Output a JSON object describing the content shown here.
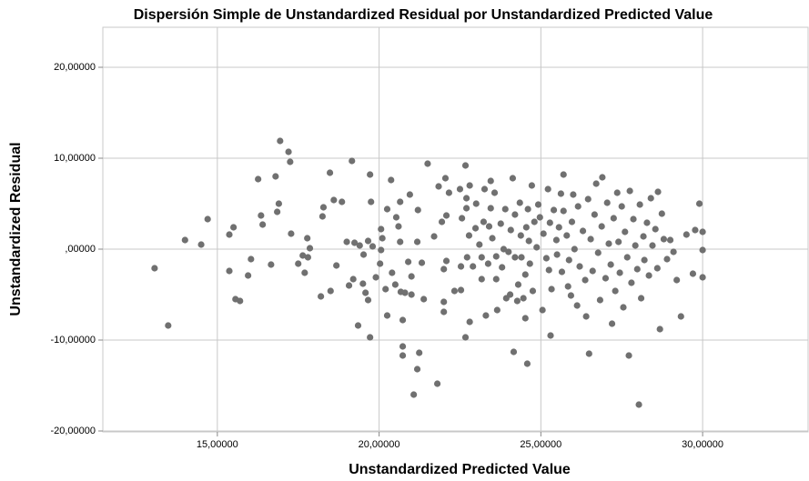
{
  "chart_data": {
    "type": "scatter",
    "title": "Dispersión Simple de Unstandardized Residual por Unstandardized Predicted Value",
    "xlabel": "Unstandardized Predicted Value",
    "ylabel": "Unstandardized Residual",
    "color": "#707070",
    "grid": true,
    "xlim": [
      11.46,
      33.26
    ],
    "ylim": [
      -20.1,
      24.4
    ],
    "xticks": [
      {
        "value": 15,
        "label": "15,00000"
      },
      {
        "value": 20,
        "label": "20,00000"
      },
      {
        "value": 25,
        "label": "25,00000"
      },
      {
        "value": 30,
        "label": "30,00000"
      }
    ],
    "yticks": [
      {
        "value": -20,
        "label": "-20,00000"
      },
      {
        "value": -10,
        "label": "-10,00000"
      },
      {
        "value": 0,
        "label": ",00000"
      },
      {
        "value": 10,
        "label": "10,00000"
      },
      {
        "value": 20,
        "label": "20,00000"
      }
    ],
    "x": [
      13.06,
      13.48,
      14.0,
      14.5,
      14.7,
      15.37,
      15.37,
      15.5,
      15.56,
      15.7,
      15.95,
      16.04,
      16.26,
      16.35,
      16.4,
      16.66,
      16.8,
      16.85,
      16.9,
      16.94,
      17.2,
      17.25,
      17.28,
      17.5,
      17.64,
      17.7,
      17.78,
      17.86,
      17.8,
      18.2,
      18.25,
      18.28,
      18.48,
      18.5,
      18.6,
      18.68,
      18.85,
      19.0,
      19.07,
      19.16,
      19.2,
      19.24,
      19.35,
      19.4,
      19.5,
      19.52,
      19.58,
      19.66,
      19.66,
      19.72,
      19.72,
      19.75,
      19.8,
      19.9,
      20.03,
      20.06,
      20.06,
      20.1,
      20.2,
      20.25,
      20.25,
      20.37,
      20.4,
      20.5,
      20.53,
      20.6,
      20.65,
      20.65,
      20.67,
      20.73,
      20.73,
      20.73,
      20.8,
      20.9,
      20.95,
      21.0,
      21.0,
      21.07,
      21.18,
      21.24,
      21.18,
      21.2,
      21.32,
      21.38,
      21.5,
      21.7,
      21.8,
      21.84,
      21.94,
      22.0,
      22.0,
      22.0,
      22.05,
      22.08,
      22.08,
      22.16,
      22.33,
      22.5,
      22.53,
      22.53,
      22.56,
      22.67,
      22.67,
      22.7,
      22.7,
      22.72,
      22.78,
      22.8,
      22.8,
      22.9,
      22.98,
      23.0,
      23.1,
      23.17,
      23.17,
      23.23,
      23.26,
      23.3,
      23.37,
      23.4,
      23.45,
      23.45,
      23.5,
      23.57,
      23.62,
      23.62,
      23.65,
      23.76,
      23.8,
      23.85,
      23.9,
      23.93,
      24.0,
      24.05,
      24.07,
      24.13,
      24.16,
      24.2,
      24.2,
      24.27,
      24.3,
      24.35,
      24.38,
      24.4,
      24.46,
      24.52,
      24.52,
      24.55,
      24.58,
      24.6,
      24.63,
      24.66,
      24.72,
      24.75,
      24.8,
      24.87,
      24.92,
      24.97,
      25.05,
      25.08,
      25.17,
      25.22,
      25.25,
      25.28,
      25.3,
      25.33,
      25.4,
      25.48,
      25.5,
      25.56,
      25.62,
      25.65,
      25.7,
      25.7,
      25.8,
      25.84,
      25.87,
      25.93,
      25.96,
      26.0,
      26.04,
      26.12,
      26.15,
      26.2,
      26.3,
      26.37,
      26.4,
      26.46,
      26.49,
      26.54,
      26.6,
      26.66,
      26.71,
      26.77,
      26.83,
      26.88,
      26.9,
      27.0,
      27.05,
      27.1,
      27.16,
      27.2,
      27.25,
      27.3,
      27.36,
      27.4,
      27.44,
      27.5,
      27.55,
      27.6,
      27.67,
      27.72,
      27.75,
      27.8,
      27.86,
      27.92,
      27.98,
      28.03,
      28.06,
      28.1,
      28.17,
      28.2,
      28.28,
      28.34,
      28.4,
      28.45,
      28.54,
      28.6,
      28.62,
      28.68,
      28.74,
      28.8,
      28.9,
      29.0,
      29.1,
      29.2,
      29.33,
      29.5,
      29.7,
      29.77,
      29.9,
      30.0,
      30.0,
      30.0
    ],
    "values": [
      -2.1,
      -8.4,
      1.0,
      0.5,
      3.3,
      -2.4,
      1.6,
      2.4,
      -5.5,
      -5.7,
      -2.9,
      -1.1,
      7.7,
      3.7,
      2.7,
      -1.7,
      8.0,
      4.1,
      5.0,
      11.9,
      10.7,
      9.6,
      1.7,
      -1.6,
      -0.7,
      -2.6,
      1.2,
      0.1,
      -0.9,
      -5.2,
      3.6,
      4.6,
      8.4,
      -4.6,
      5.4,
      -1.8,
      5.2,
      0.8,
      -4.0,
      9.7,
      -3.3,
      0.7,
      -8.4,
      0.4,
      -3.8,
      -0.6,
      -4.8,
      0.9,
      -5.6,
      -9.7,
      8.2,
      5.2,
      0.3,
      -3.1,
      -1.6,
      -0.1,
      2.2,
      1.2,
      -4.4,
      -7.3,
      4.4,
      7.6,
      -2.6,
      -3.9,
      3.5,
      2.5,
      0.8,
      5.2,
      -4.7,
      -7.8,
      -10.7,
      -11.7,
      -4.8,
      -1.4,
      6.0,
      -3.0,
      -5.0,
      -16.0,
      -13.2,
      -11.4,
      0.8,
      4.3,
      -1.5,
      -5.5,
      9.4,
      1.4,
      -14.8,
      6.9,
      3.0,
      -2.2,
      -5.8,
      -6.9,
      7.8,
      -1.3,
      3.7,
      6.2,
      -4.6,
      6.6,
      -1.9,
      -4.5,
      3.4,
      9.2,
      -9.7,
      5.6,
      4.5,
      -0.9,
      1.5,
      -8.0,
      7.0,
      -1.9,
      2.3,
      5.0,
      0.5,
      -3.3,
      -0.9,
      3.0,
      6.6,
      -7.3,
      -1.6,
      2.5,
      7.5,
      4.5,
      1.2,
      6.2,
      -0.8,
      -3.3,
      -6.7,
      2.8,
      -2.0,
      0.0,
      4.4,
      -5.4,
      -0.3,
      -5.0,
      2.1,
      7.8,
      -11.3,
      3.8,
      -0.9,
      -5.7,
      -3.9,
      5.1,
      1.5,
      -0.9,
      -5.4,
      -2.8,
      -7.6,
      2.4,
      -12.6,
      4.4,
      0.9,
      -1.6,
      7.0,
      -4.6,
      3.0,
      0.2,
      4.9,
      3.5,
      -6.7,
      1.7,
      -1.0,
      6.6,
      -2.3,
      2.9,
      -9.5,
      -4.4,
      4.3,
      1.0,
      -0.6,
      2.4,
      6.1,
      -2.5,
      8.2,
      4.2,
      1.5,
      -4.1,
      -1.2,
      -5.1,
      3.0,
      6.0,
      0.0,
      -6.2,
      4.7,
      -1.9,
      2.0,
      -3.4,
      -7.4,
      5.5,
      -11.5,
      1.1,
      -2.4,
      3.8,
      7.2,
      -0.4,
      -5.6,
      2.5,
      7.9,
      -3.2,
      5.1,
      0.6,
      -1.7,
      -8.2,
      3.4,
      -4.6,
      6.2,
      0.8,
      -2.6,
      4.7,
      -6.4,
      1.9,
      -0.9,
      -11.7,
      6.4,
      -3.7,
      3.3,
      0.4,
      -2.2,
      -17.1,
      4.9,
      -5.4,
      1.4,
      -1.2,
      2.9,
      -2.9,
      5.6,
      0.4,
      2.2,
      -2.1,
      6.3,
      -8.8,
      3.9,
      1.1,
      -1.1,
      1.0,
      -0.3,
      -3.4,
      -7.4,
      1.6,
      -2.7,
      2.1,
      5.0,
      1.9,
      -0.1,
      -3.1
    ]
  }
}
